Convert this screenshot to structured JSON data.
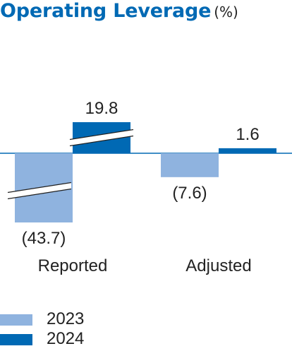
{
  "title": {
    "text": "Operating Leverage",
    "unit": "(%)"
  },
  "colors": {
    "y2023": "#8fb3df",
    "y2024": "#0069b4",
    "title": "#0069b4",
    "baseline": "#0069b4"
  },
  "legend": [
    {
      "label": "2023",
      "color": "#8fb3df"
    },
    {
      "label": "2024",
      "color": "#0069b4"
    }
  ],
  "chart_data": {
    "type": "bar",
    "title": "Operating Leverage",
    "unit": "(%)",
    "categories": [
      "Reported",
      "Adjusted"
    ],
    "series": [
      {
        "name": "2023",
        "values": [
          -43.7,
          -7.6
        ],
        "labels": [
          "(43.7)",
          "(7.6)"
        ]
      },
      {
        "name": "2024",
        "values": [
          19.8,
          1.6
        ],
        "labels": [
          "19.8",
          "1.6"
        ]
      }
    ],
    "axis_break": true,
    "legend_position": "bottom-left"
  }
}
